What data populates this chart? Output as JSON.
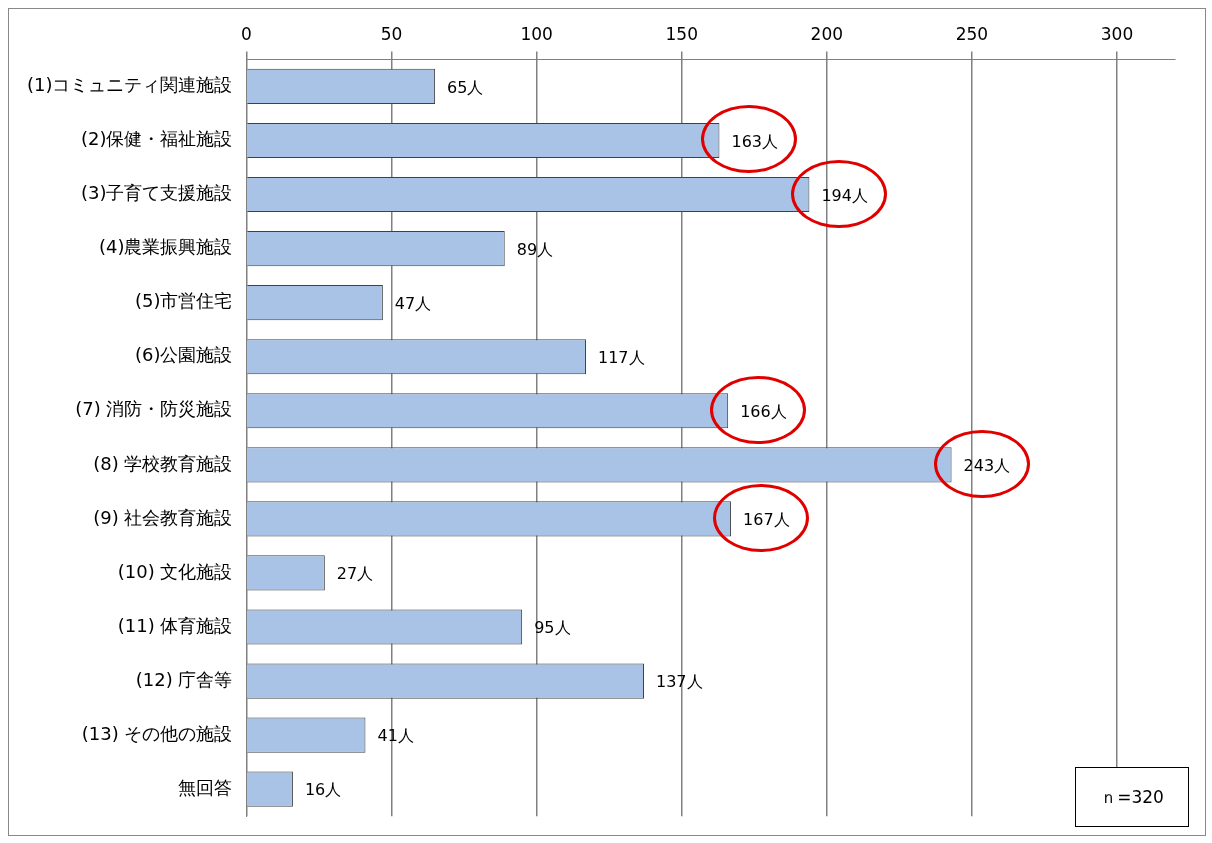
{
  "chart_data": {
    "type": "bar",
    "orientation": "horizontal",
    "categories": [
      "(1)コミュニティ関連施設",
      "(2)保健・福祉施設",
      "(3)子育て支援施設",
      "(4)農業振興施設",
      "(5)市営住宅",
      "(6)公園施設",
      "(7) 消防・防災施設",
      "(8) 学校教育施設",
      "(9) 社会教育施設",
      "(10) 文化施設",
      "(11) 体育施設",
      "(12) 庁舎等",
      "(13) その他の施設",
      "無回答"
    ],
    "values": [
      65,
      163,
      194,
      89,
      47,
      117,
      166,
      243,
      167,
      27,
      95,
      137,
      41,
      16
    ],
    "value_labels": [
      "65人",
      "163人",
      "194人",
      "89人",
      "47人",
      "117人",
      "166人",
      "243人",
      "167人",
      "27人",
      "95人",
      "137人",
      "41人",
      "16人"
    ],
    "color": "#a8c3e6",
    "xlim": [
      0,
      320
    ],
    "xticks": [
      0,
      50,
      100,
      150,
      200,
      250,
      300
    ],
    "grid": "x",
    "legend": false,
    "annotations": [
      "ｎ=320"
    ]
  }
}
